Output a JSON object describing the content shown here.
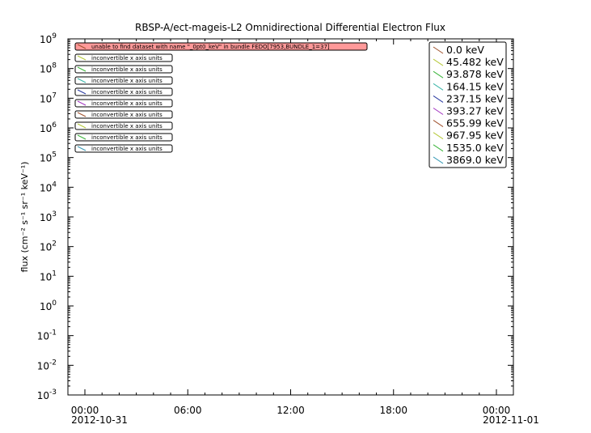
{
  "chart_data": {
    "type": "line",
    "title": "RBSP-A/ect-mageis-L2  Omnidirectional Differential Electron Flux",
    "ylabel": "flux (cm⁻² s⁻¹ sr⁻¹ keV⁻¹)",
    "xlabel": "",
    "yscale": "log",
    "ylim": [
      0.001,
      1000000000
    ],
    "y_ticks": [
      {
        "value": 0.001,
        "base": "10",
        "exp": "-3"
      },
      {
        "value": 0.01,
        "base": "10",
        "exp": "-2"
      },
      {
        "value": 0.1,
        "base": "10",
        "exp": "-1"
      },
      {
        "value": 1,
        "base": "10",
        "exp": "0"
      },
      {
        "value": 10,
        "base": "10",
        "exp": "1"
      },
      {
        "value": 100,
        "base": "10",
        "exp": "2"
      },
      {
        "value": 1000,
        "base": "10",
        "exp": "3"
      },
      {
        "value": 10000,
        "base": "10",
        "exp": "4"
      },
      {
        "value": 100000,
        "base": "10",
        "exp": "5"
      },
      {
        "value": 1000000,
        "base": "10",
        "exp": "6"
      },
      {
        "value": 10000000,
        "base": "10",
        "exp": "7"
      },
      {
        "value": 100000000,
        "base": "10",
        "exp": "8"
      },
      {
        "value": 1000000000,
        "base": "10",
        "exp": "9"
      }
    ],
    "xlim": [
      "2012-10-31 00:00",
      "2012-11-01 00:00"
    ],
    "x_ticks": [
      {
        "hours": 0,
        "label": "00:00",
        "date": "2012-10-31"
      },
      {
        "hours": 6,
        "label": "06:00",
        "date": ""
      },
      {
        "hours": 12,
        "label": "12:00",
        "date": ""
      },
      {
        "hours": 18,
        "label": "18:00",
        "date": ""
      },
      {
        "hours": 24,
        "label": "00:00",
        "date": "2012-11-01"
      }
    ],
    "grid": false,
    "legend_position": "top-right",
    "series": [
      {
        "name": "0.0 keV",
        "color": "#a0522d",
        "values": []
      },
      {
        "name": "45.482 keV",
        "color": "#b5c93a",
        "values": []
      },
      {
        "name": "93.878 keV",
        "color": "#3ab53a",
        "values": []
      },
      {
        "name": "164.15 keV",
        "color": "#3ab5a8",
        "values": []
      },
      {
        "name": "237.15 keV",
        "color": "#2a3aa0",
        "values": []
      },
      {
        "name": "393.27 keV",
        "color": "#a030c0",
        "values": []
      },
      {
        "name": "655.99 keV",
        "color": "#a0522d",
        "values": []
      },
      {
        "name": "967.95 keV",
        "color": "#b5c93a",
        "values": []
      },
      {
        "name": "1535.0 keV",
        "color": "#3ab53a",
        "values": []
      },
      {
        "name": "3869.0 keV",
        "color": "#3a9ab5",
        "values": []
      }
    ],
    "annotations": [
      {
        "text": "unable to find dataset with name \"_0pt0_keV\" in bundle FEDO[7953,BUNDLE_1=37]",
        "color": "#a0522d",
        "error": true
      },
      {
        "text": "inconvertible x axis units",
        "color": "#b5c93a",
        "error": false
      },
      {
        "text": "inconvertible x axis units",
        "color": "#3ab53a",
        "error": false
      },
      {
        "text": "inconvertible x axis units",
        "color": "#3ab5a8",
        "error": false
      },
      {
        "text": "inconvertible x axis units",
        "color": "#2a3aa0",
        "error": false
      },
      {
        "text": "inconvertible x axis units",
        "color": "#a030c0",
        "error": false
      },
      {
        "text": "inconvertible x axis units",
        "color": "#a0522d",
        "error": false
      },
      {
        "text": "inconvertible x axis units",
        "color": "#b5c93a",
        "error": false
      },
      {
        "text": "inconvertible x axis units",
        "color": "#3ab53a",
        "error": false
      },
      {
        "text": "inconvertible x axis units",
        "color": "#3a9ab5",
        "error": false
      }
    ]
  }
}
